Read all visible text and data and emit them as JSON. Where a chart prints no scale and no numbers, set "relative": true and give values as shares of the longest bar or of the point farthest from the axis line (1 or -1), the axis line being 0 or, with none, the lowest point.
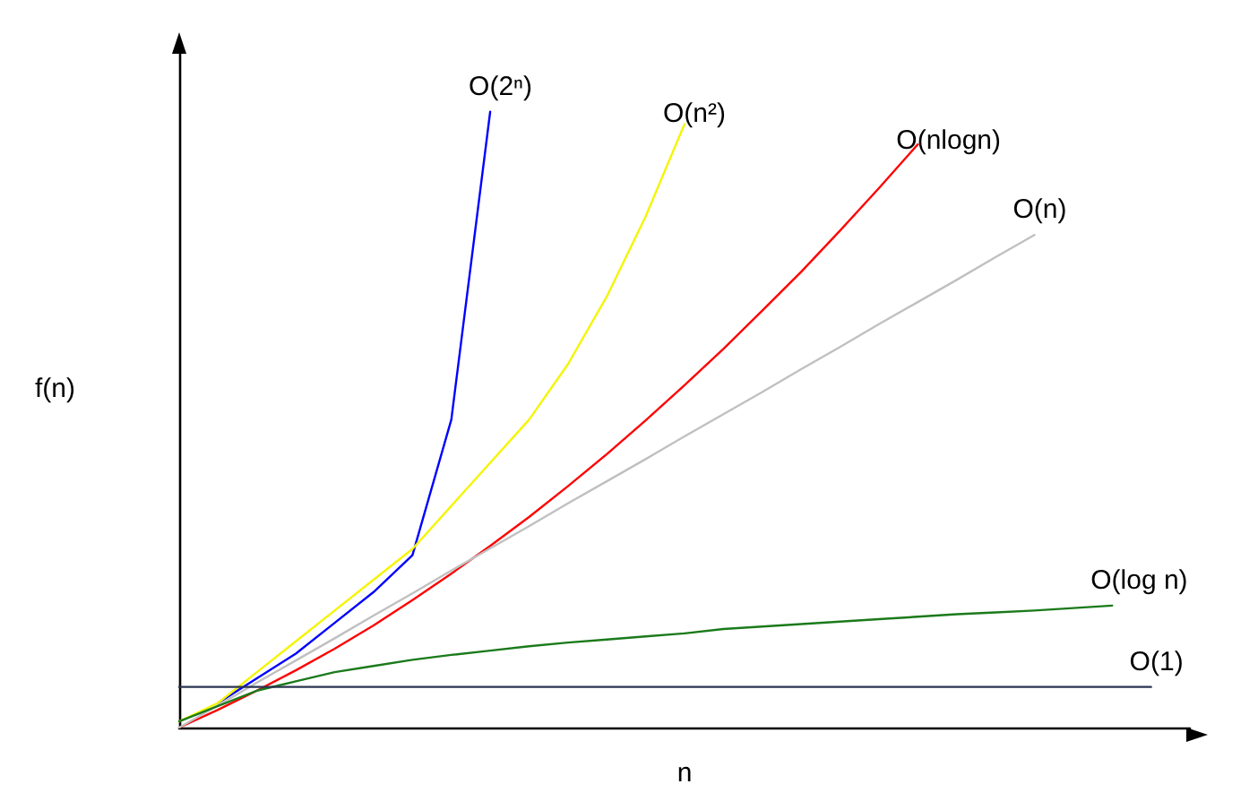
{
  "chart_data": {
    "type": "line",
    "relative": true,
    "xlabel": "n",
    "ylabel": "f(n)",
    "grid": false,
    "legend": false,
    "marker": "none",
    "line_style": "solid",
    "categories": [
      null,
      null,
      null,
      null,
      null,
      null,
      null,
      null,
      null,
      null,
      null,
      null,
      null,
      null,
      null,
      null,
      null,
      null,
      null,
      null,
      null,
      null,
      null,
      null,
      null,
      null,
      null
    ],
    "series": [
      {
        "name": "O(2ⁿ)",
        "color": "#0000ff",
        "values": [
          null,
          0.04,
          0.08,
          0.12,
          0.17,
          0.22,
          0.28,
          0.5,
          1.0,
          null,
          null,
          null,
          null,
          null,
          null,
          null,
          null,
          null,
          null,
          null,
          null,
          null,
          null,
          null,
          null,
          null,
          null
        ]
      },
      {
        "name": "O(n²)",
        "color": "#f5f500",
        "values": [
          0.01,
          0.04,
          0.09,
          0.14,
          0.19,
          0.24,
          0.29,
          0.36,
          0.43,
          0.5,
          0.59,
          0.7,
          0.83,
          0.98,
          null,
          null,
          null,
          null,
          null,
          null,
          null,
          null,
          null,
          null,
          null,
          null,
          null
        ]
      },
      {
        "name": "O(nlogn)",
        "color": "#ff0000",
        "values": [
          0.0,
          0.029,
          0.06,
          0.093,
          0.128,
          0.166,
          0.207,
          0.25,
          0.295,
          0.342,
          0.392,
          0.444,
          0.499,
          0.556,
          0.615,
          0.677,
          0.74,
          0.807,
          0.876,
          0.947,
          null,
          null,
          null,
          null,
          null,
          null,
          null
        ]
      },
      {
        "name": "O(n)",
        "color": "#c0c0c0",
        "values": [
          0.0,
          0.036,
          0.073,
          0.109,
          0.145,
          0.182,
          0.218,
          0.255,
          0.291,
          0.327,
          0.364,
          0.4,
          0.436,
          0.473,
          0.509,
          0.545,
          0.582,
          0.618,
          0.655,
          0.691,
          0.727,
          0.764,
          0.8,
          null,
          null,
          null,
          null
        ]
      },
      {
        "name": "O(log n)",
        "color": "#1a7a1a",
        "values": [
          0.01,
          0.035,
          0.06,
          0.075,
          0.09,
          0.1,
          0.11,
          0.118,
          0.125,
          0.132,
          0.138,
          0.143,
          0.148,
          0.153,
          0.16,
          0.164,
          0.168,
          0.172,
          0.176,
          0.18,
          0.184,
          0.187,
          0.19,
          0.194,
          0.198,
          null,
          null
        ]
      },
      {
        "name": "O(1)",
        "color": "#2a3550",
        "values": [
          0.066,
          0.066,
          0.066,
          0.066,
          0.066,
          0.066,
          0.066,
          0.066,
          0.066,
          0.066,
          0.066,
          0.066,
          0.066,
          0.066,
          0.066,
          0.066,
          0.066,
          0.066,
          0.066,
          0.066,
          0.066,
          0.066,
          0.066,
          0.066,
          0.066,
          0.066,
          null
        ]
      }
    ]
  }
}
